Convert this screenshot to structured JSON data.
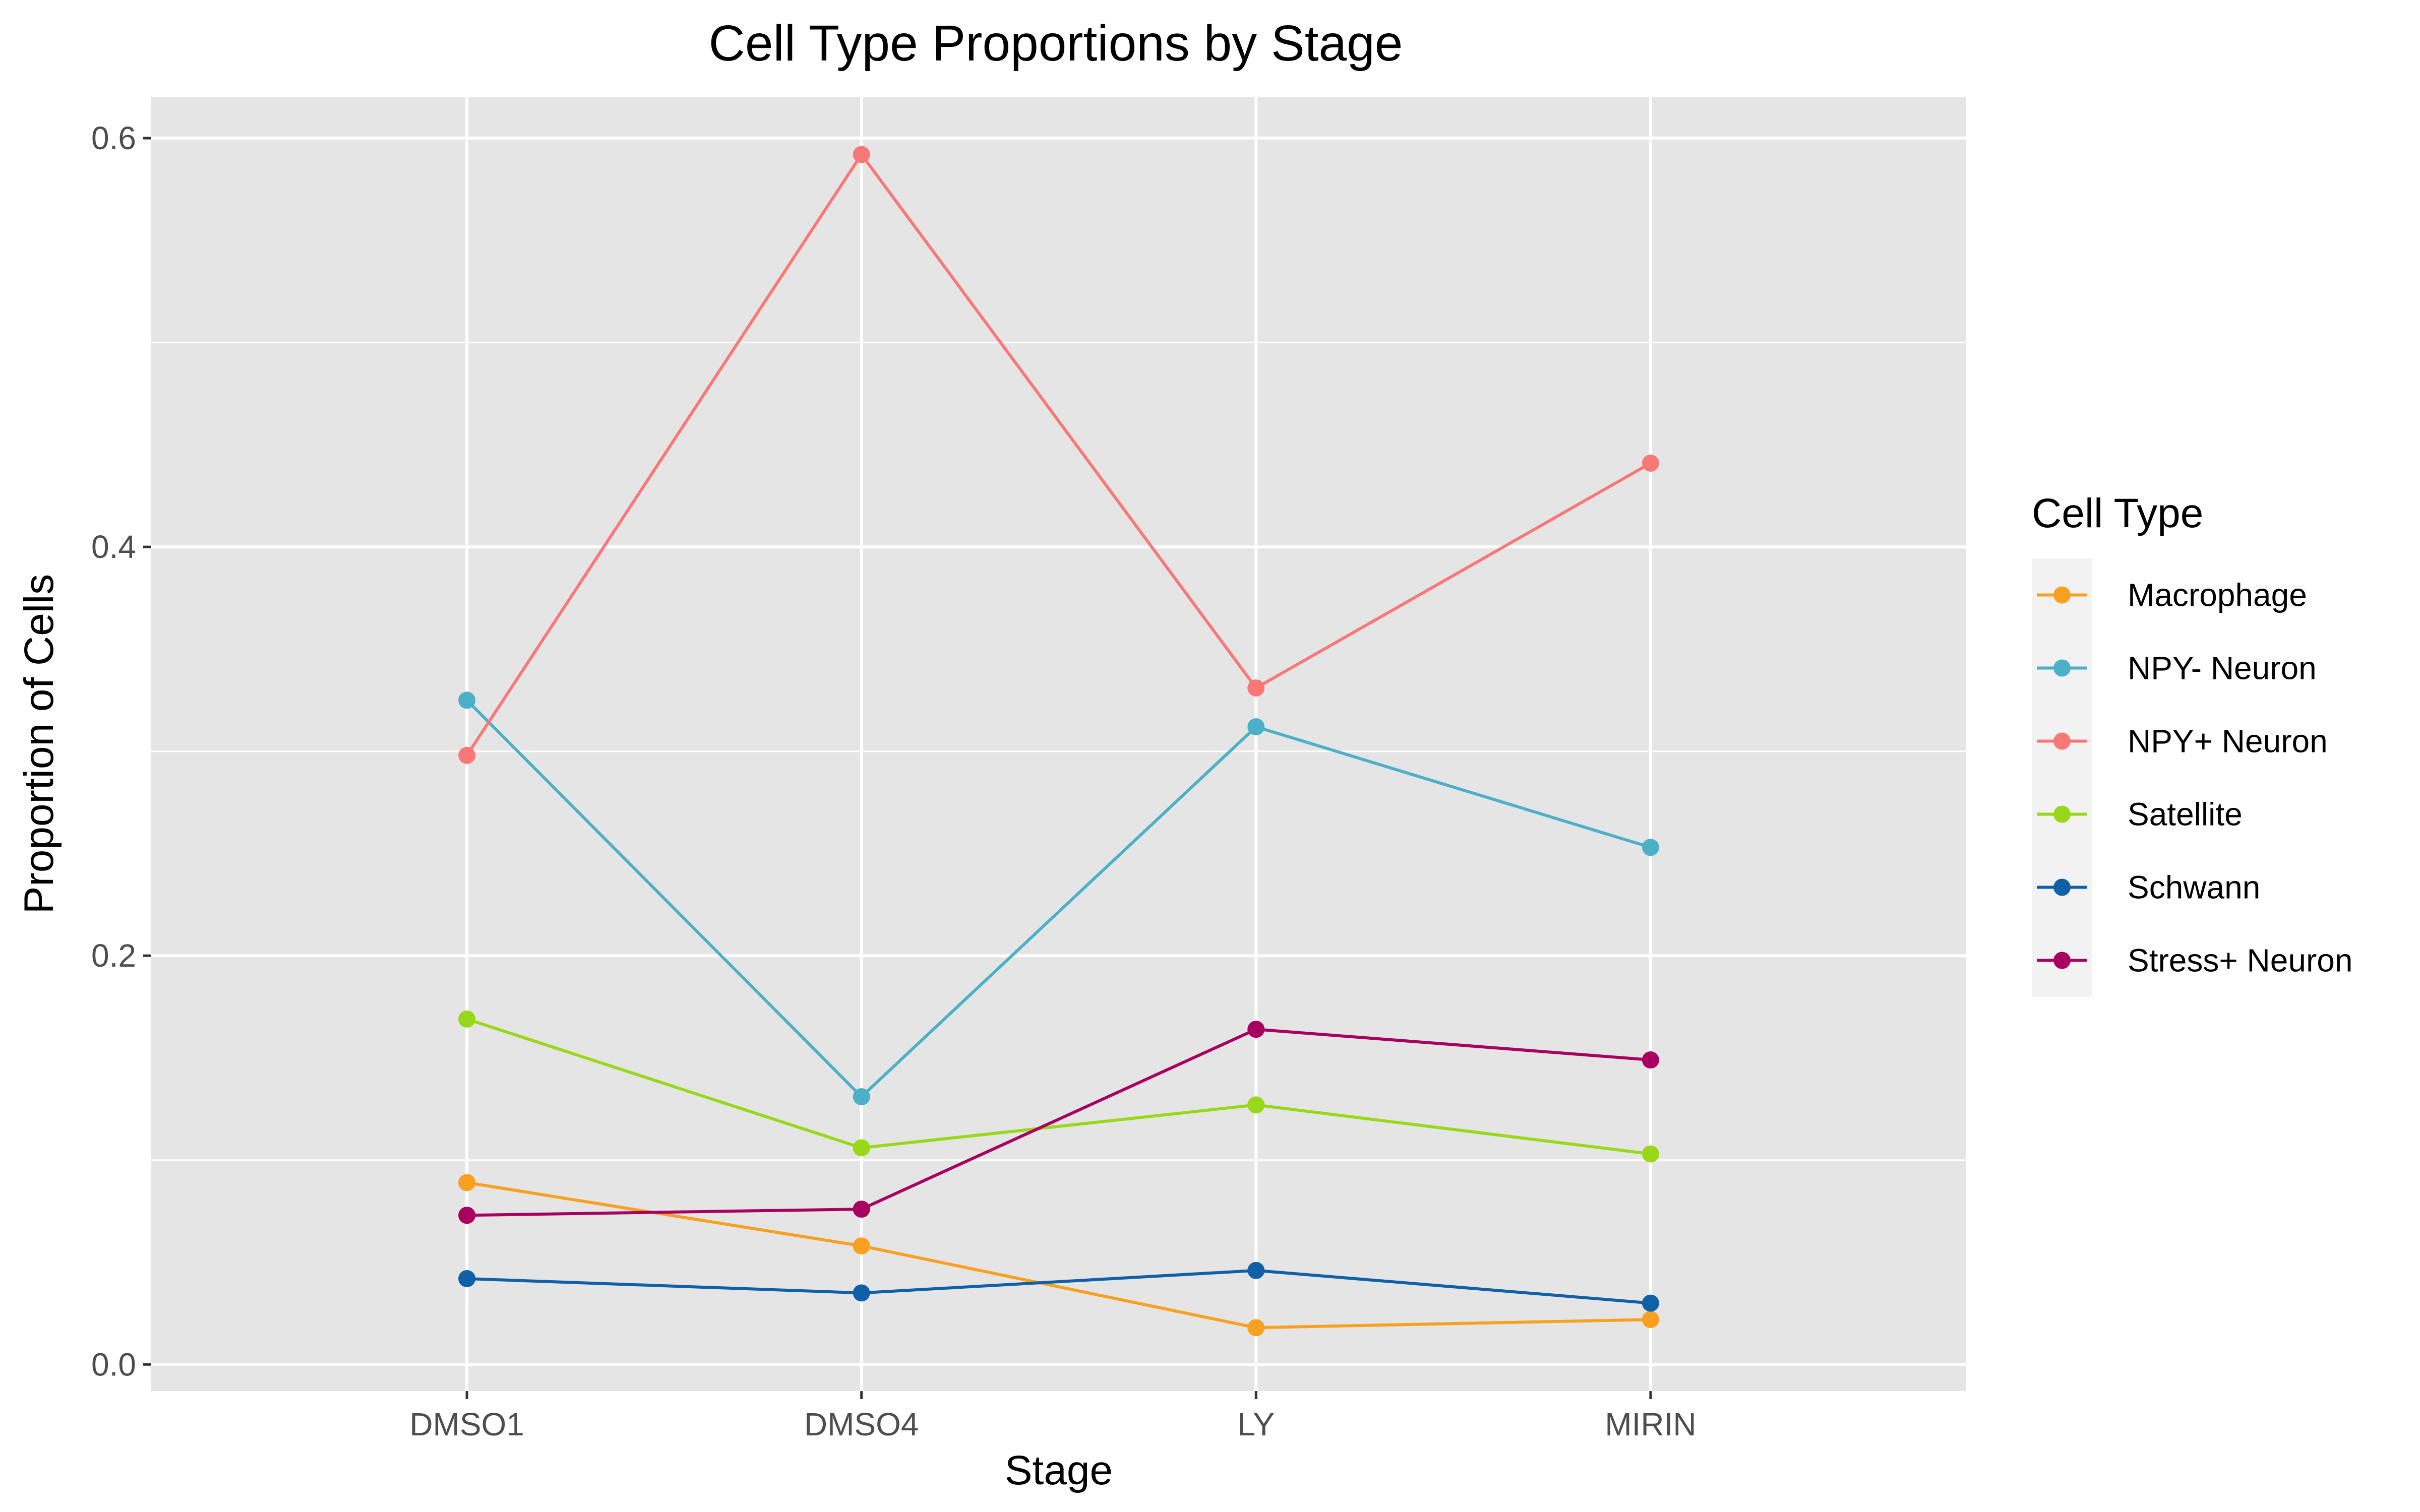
{
  "chart_data": {
    "type": "line",
    "title": "Cell Type Proportions by Stage",
    "xlabel": "Stage",
    "ylabel": "Proportion of Cells",
    "categories": [
      "DMSO1",
      "DMSO4",
      "LY",
      "MIRIN"
    ],
    "ylim": [
      -0.013,
      0.62
    ],
    "y_ticks": [
      0.0,
      0.2,
      0.4,
      0.6
    ],
    "y_tick_labels": [
      "0.0",
      "0.2",
      "0.4",
      "0.6"
    ],
    "grid": true,
    "legend": {
      "title": "Cell Type",
      "position": "right"
    },
    "series": [
      {
        "name": "Macrophage",
        "color": "#F8A020",
        "values": [
          0.089,
          0.058,
          0.018,
          0.022
        ]
      },
      {
        "name": "NPY- Neuron",
        "color": "#4BB0C8",
        "values": [
          0.325,
          0.131,
          0.312,
          0.253
        ]
      },
      {
        "name": "NPY+ Neuron",
        "color": "#F87878",
        "values": [
          0.298,
          0.592,
          0.331,
          0.441
        ]
      },
      {
        "name": "Satellite",
        "color": "#98D818",
        "values": [
          0.169,
          0.106,
          0.127,
          0.103
        ]
      },
      {
        "name": "Schwann",
        "color": "#1060A8",
        "values": [
          0.042,
          0.035,
          0.046,
          0.03
        ]
      },
      {
        "name": "Stress+ Neuron",
        "color": "#A80060",
        "values": [
          0.073,
          0.076,
          0.164,
          0.149
        ]
      }
    ]
  }
}
